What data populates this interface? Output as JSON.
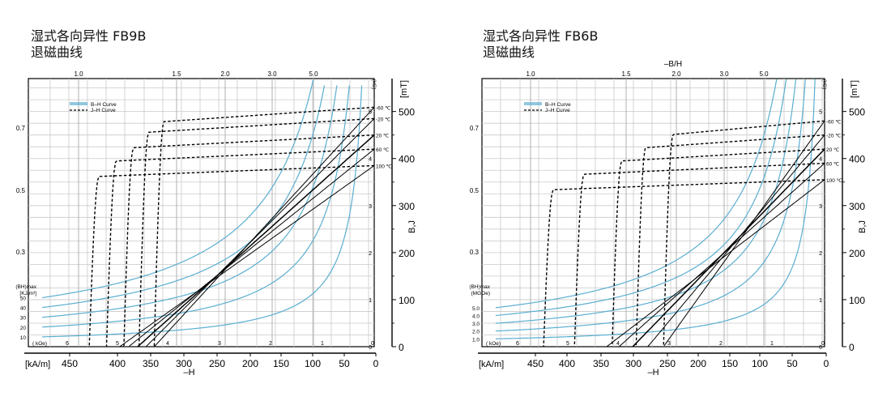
{
  "charts": [
    {
      "title_line1": "湿式各向异性  FB9B",
      "title_line2": "退磁曲线",
      "top_axis_label": "",
      "top_ticks": [
        "1.0",
        "1.5",
        "2.0",
        "3.0",
        "5.0"
      ],
      "left_ticks": [
        "0.7",
        "0.5",
        "0.3"
      ],
      "legend": [
        "B–H Curve",
        "J–H Curve"
      ],
      "bh_label": [
        "(BH)max",
        "[KJ/m³]"
      ],
      "bh_ticks": [
        "50",
        "40",
        "30",
        "20",
        "10"
      ],
      "koe_label": "( kOe)",
      "koe_ticks": [
        "6",
        "5",
        "4",
        "3",
        "2",
        "1",
        "0"
      ],
      "kg_label": "(kG)",
      "kg_ticks": [
        "5",
        "4",
        "3",
        "2",
        "1",
        "0"
      ],
      "mt_label": "[mT]",
      "mt_ticks": [
        "500",
        "400",
        "300",
        "200",
        "100",
        "0"
      ],
      "bj_label": "B,J",
      "x_unit": "[kA/m]",
      "x_ticks": [
        "450",
        "400",
        "350",
        "300",
        "250",
        "200",
        "150",
        "100",
        "50",
        "0"
      ],
      "x_label": "–H",
      "temp_labels": [
        "-60 ℃",
        "-20 ℃",
        "20 ℃",
        "60 ℃",
        "100 ℃"
      ]
    },
    {
      "title_line1": "湿式各向异性  FB6B",
      "title_line2": "退磁曲线",
      "top_axis_label": "–B/H",
      "top_ticks": [
        "1.0",
        "1.5",
        "2.0",
        "3.0",
        "5.0"
      ],
      "left_ticks": [
        "0.7",
        "0.5",
        "0.3"
      ],
      "legend": [
        "B–H Curve",
        "J–H Curve"
      ],
      "bh_label": [
        "(BH)max",
        "(MGOe)"
      ],
      "bh_ticks": [
        "5.0",
        "4.0",
        "3.0",
        "2.0",
        "1.0"
      ],
      "koe_label": "( kOe)",
      "koe_ticks": [
        "6",
        "5",
        "4",
        "3",
        "2",
        "1",
        "0"
      ],
      "kg_label": "(kG)",
      "kg_ticks": [
        "5",
        "4",
        "3",
        "2",
        "1",
        "0"
      ],
      "mt_label": "[mT]",
      "mt_ticks": [
        "500",
        "400",
        "300",
        "200",
        "100",
        "0"
      ],
      "bj_label": "B,J",
      "x_unit": "[kA/m]",
      "x_ticks": [
        "450",
        "400",
        "350",
        "300",
        "250",
        "200",
        "150",
        "100",
        "50",
        "0"
      ],
      "x_label": "–H",
      "temp_labels": [
        "-60 ℃",
        "-20 ℃",
        "20 ℃",
        "60 ℃",
        "100 ℃"
      ]
    }
  ],
  "chart_data": [
    {
      "type": "line",
      "title": "湿式各向异性  FB9B 退磁曲线",
      "xlabel": "–H [kA/m]",
      "ylabel": "B,J [mT]",
      "xlim": [
        500,
        0
      ],
      "ylim": [
        0,
        570
      ],
      "grid": true,
      "legend_position": "top-left",
      "temperatures_C": [
        -60,
        -20,
        20,
        60,
        100
      ],
      "jh_curves": [
        {
          "name": "-60 ℃",
          "Br": 509,
          "Hcj": 318
        },
        {
          "name": "-20 ℃",
          "Br": 485,
          "Hcj": 340
        },
        {
          "name": "20 ℃",
          "Br": 450,
          "Hcj": 362
        },
        {
          "name": "60 ℃",
          "Br": 420,
          "Hcj": 387
        },
        {
          "name": "100 ℃",
          "Br": 385,
          "Hcj": 412
        }
      ],
      "bh_curves": [
        {
          "name": "-60 ℃",
          "Br": 509,
          "Hcb": 318
        },
        {
          "name": "-20 ℃",
          "Br": 485,
          "Hcb": 330
        },
        {
          "name": "20 ℃",
          "Br": 450,
          "Hcb": 342
        },
        {
          "name": "60 ℃",
          "Br": 420,
          "Hcb": 355
        },
        {
          "name": "100 ℃",
          "Br": 385,
          "Hcb": 368
        }
      ],
      "bhmax_iso_kJ_m3": [
        10,
        20,
        30,
        40,
        50
      ]
    },
    {
      "type": "line",
      "title": "湿式各向异性  FB6B 退磁曲线",
      "xlabel": "–H [kA/m]",
      "ylabel": "B,J [mT]",
      "xlim": [
        500,
        0
      ],
      "ylim": [
        0,
        570
      ],
      "grid": true,
      "legend_position": "top-left",
      "temperatures_C": [
        -60,
        -20,
        20,
        60,
        100
      ],
      "jh_curves": [
        {
          "name": "-60 ℃",
          "Br": 480,
          "Hcj": 235
        },
        {
          "name": "-20 ℃",
          "Br": 450,
          "Hcj": 275
        },
        {
          "name": "20 ℃",
          "Br": 420,
          "Hcj": 310
        },
        {
          "name": "60 ℃",
          "Br": 390,
          "Hcj": 365
        },
        {
          "name": "100 ℃",
          "Br": 355,
          "Hcj": 410
        }
      ],
      "bh_curves": [
        {
          "name": "-60 ℃",
          "Br": 480,
          "Hcb": 235
        },
        {
          "name": "-20 ℃",
          "Br": 450,
          "Hcb": 258
        },
        {
          "name": "20 ℃",
          "Br": 420,
          "Hcb": 280
        },
        {
          "name": "60 ℃",
          "Br": 390,
          "Hcb": 300
        },
        {
          "name": "100 ℃",
          "Br": 355,
          "Hcb": 318
        }
      ],
      "bhmax_iso_MGOe": [
        1.0,
        2.0,
        3.0,
        4.0,
        5.0
      ]
    }
  ]
}
